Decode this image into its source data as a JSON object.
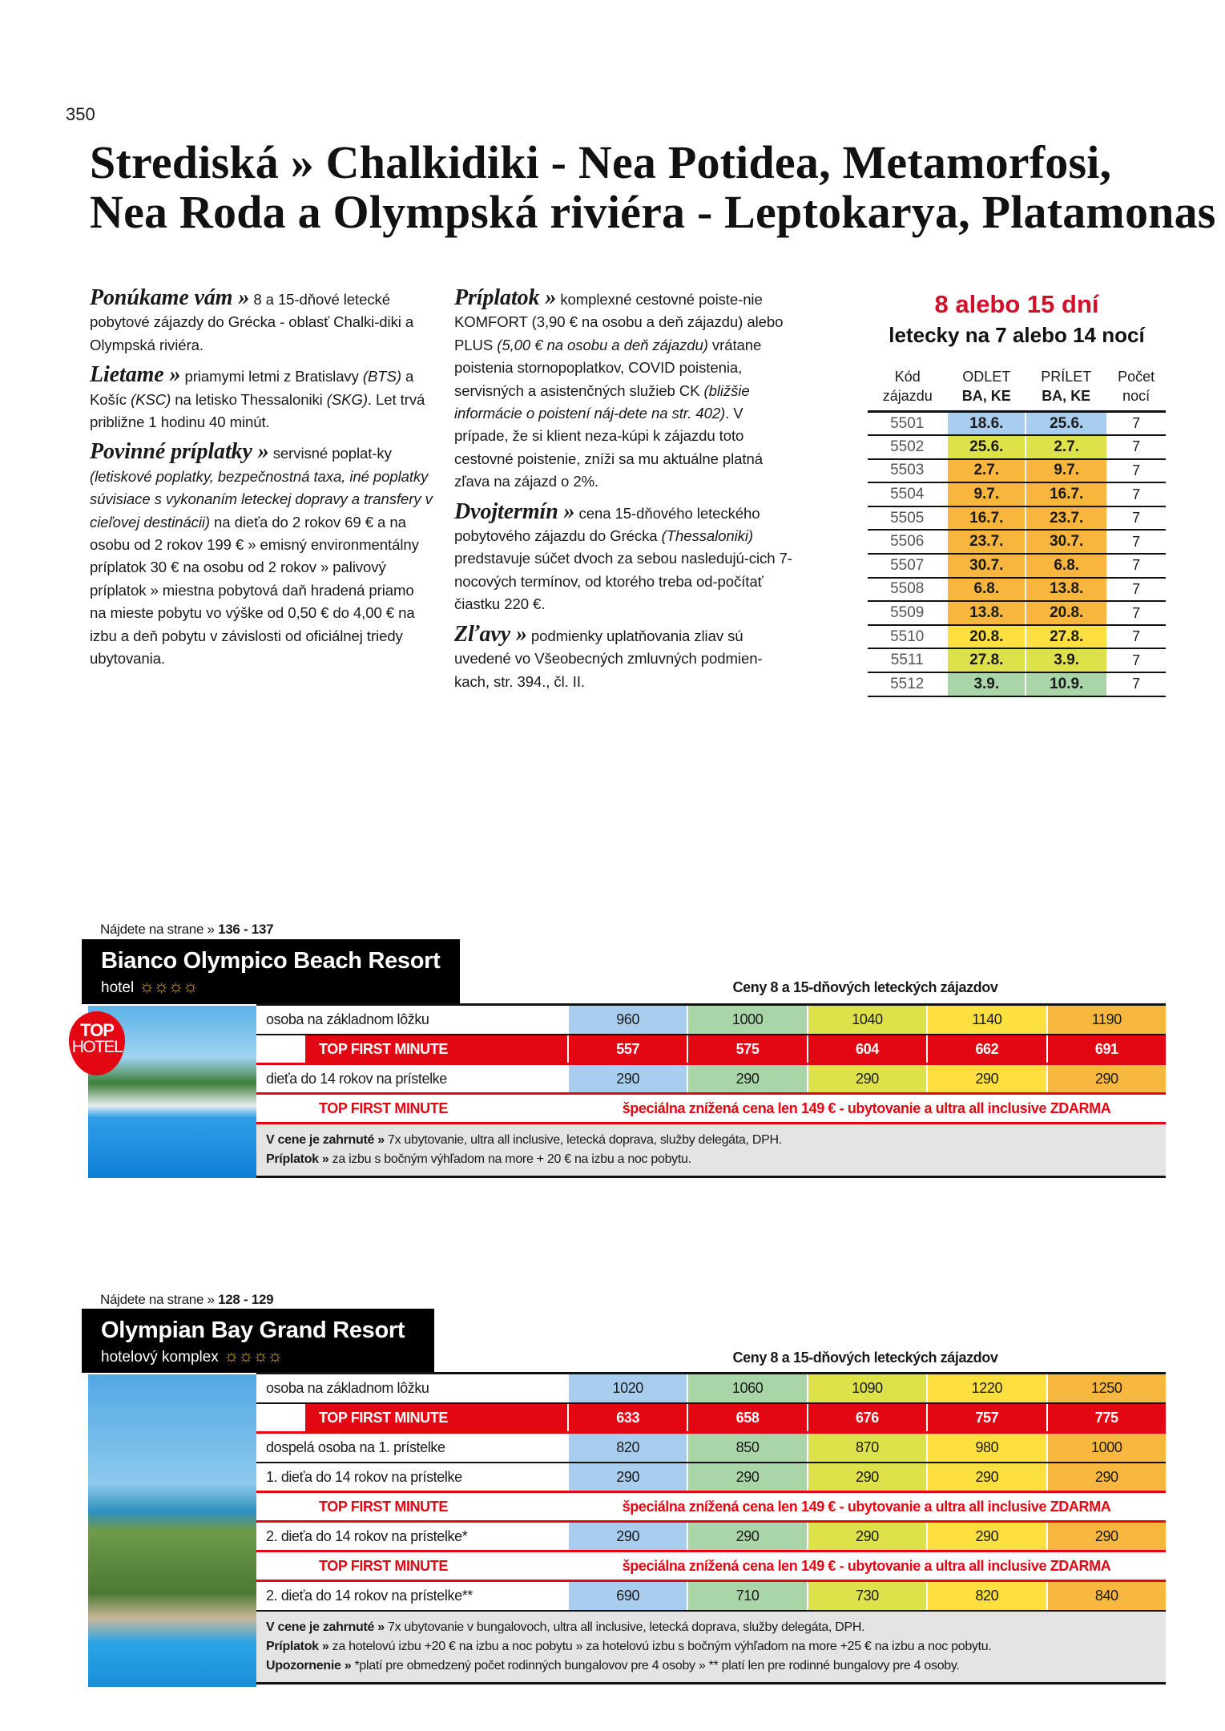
{
  "page_number": "350",
  "title": [
    "Strediská » Chalkidiki - Nea Potidea, Metamorfosi,",
    "Nea Roda a Olympská riviéra - Leptokarya, Platamonas"
  ],
  "columns": [
    [
      {
        "heading": "Ponúkame vám »",
        "segments": [
          {
            "t": " 8 a 15-dňové letecké pobytové zájazdy do Grécka - oblasť Chalki-diki a Olympská riviéra.",
            "i": false
          }
        ]
      },
      {
        "heading": "Lietame »",
        "segments": [
          {
            "t": " priamymi letmi z Bratislavy ",
            "i": false
          },
          {
            "t": "(BTS)",
            "i": true
          },
          {
            "t": " a Košíc ",
            "i": false
          },
          {
            "t": "(KSC)",
            "i": true
          },
          {
            "t": " na letisko Thessaloniki ",
            "i": false
          },
          {
            "t": "(SKG)",
            "i": true
          },
          {
            "t": ". Let trvá približne 1 hodinu 40 minút.",
            "i": false
          }
        ]
      },
      {
        "heading": "Povinné príplatky »",
        "segments": [
          {
            "t": " servisné poplat-ky ",
            "i": false
          },
          {
            "t": "(letiskové poplatky, bezpečnostná taxa, iné poplatky súvisiace s vykonaním leteckej dopravy a transfery v cieľovej destinácii)",
            "i": true
          },
          {
            "t": " na dieťa do 2 rokov 69 € a na osobu od 2 rokov 199 € » emisný environmentálny príplatok 30 € na osobu od 2 rokov » palivový príplatok » miestna pobytová daň hradená priamo na mieste pobytu vo výške od 0,50 € do 4,00 € na izbu a deň pobytu v závislosti od oficiálnej triedy ubytovania.",
            "i": false
          }
        ]
      }
    ],
    [
      {
        "heading": "Príplatok »",
        "segments": [
          {
            "t": " komplexné cestovné poiste-nie KOMFORT (3,90 € na osobu a deň zájazdu) alebo PLUS ",
            "i": false
          },
          {
            "t": "(5,00 € na osobu a deň zájazdu)",
            "i": true
          },
          {
            "t": " vrátane poistenia stornopoplatkov, COVID poistenia, servisných a asistenčných služieb CK ",
            "i": false
          },
          {
            "t": "(bližšie informácie o poistení náj-dete na str. 402)",
            "i": true
          },
          {
            "t": ". V prípade, že si klient neza-kúpi k zájazdu toto cestovné poistenie, zníži sa mu aktuálne platná zľava na zájazd o 2%.",
            "i": false
          }
        ]
      },
      {
        "heading": "Dvojtermín »",
        "segments": [
          {
            "t": " cena 15-dňového leteckého pobytového zájazdu do Grécka ",
            "i": false
          },
          {
            "t": "(Thessaloniki)",
            "i": true
          },
          {
            "t": " predstavuje súčet dvoch za sebou nasledujú-cich 7-nocových termínov, od ktorého treba od-počítať čiastku 220 €.",
            "i": false
          }
        ]
      },
      {
        "heading": "Zľavy »",
        "segments": [
          {
            "t": " podmienky uplatňovania zliav sú uvedené vo Všeobecných zmluvných podmien-kach, str. 394., čl. II.",
            "i": false
          }
        ]
      }
    ]
  ],
  "dates_table": {
    "title": "8 alebo 15 dní",
    "subtitle": "letecky na 7 alebo 14 nocí",
    "headers": [
      [
        "Kód",
        "zájazdu"
      ],
      [
        "ODLET",
        "BA, KE"
      ],
      [
        "PRÍLET",
        "BA, KE"
      ],
      [
        "Počet",
        "nocí"
      ]
    ],
    "rows": [
      {
        "code": "5501",
        "odlet": "18.6.",
        "prilet": "25.6.",
        "noci": "7",
        "color": "#a9cdee"
      },
      {
        "code": "5502",
        "odlet": "25.6.",
        "prilet": "2.7.",
        "noci": "7",
        "color": "#dde24a"
      },
      {
        "code": "5503",
        "odlet": "2.7.",
        "prilet": "9.7.",
        "noci": "7",
        "color": "#f8b63e"
      },
      {
        "code": "5504",
        "odlet": "9.7.",
        "prilet": "16.7.",
        "noci": "7",
        "color": "#f8b63e"
      },
      {
        "code": "5505",
        "odlet": "16.7.",
        "prilet": "23.7.",
        "noci": "7",
        "color": "#f8b63e"
      },
      {
        "code": "5506",
        "odlet": "23.7.",
        "prilet": "30.7.",
        "noci": "7",
        "color": "#f8b63e"
      },
      {
        "code": "5507",
        "odlet": "30.7.",
        "prilet": "6.8.",
        "noci": "7",
        "color": "#f8b63e"
      },
      {
        "code": "5508",
        "odlet": "6.8.",
        "prilet": "13.8.",
        "noci": "7",
        "color": "#f8b63e"
      },
      {
        "code": "5509",
        "odlet": "13.8.",
        "prilet": "20.8.",
        "noci": "7",
        "color": "#f8b63e"
      },
      {
        "code": "5510",
        "odlet": "20.8.",
        "prilet": "27.8.",
        "noci": "7",
        "color": "#fde040"
      },
      {
        "code": "5511",
        "odlet": "27.8.",
        "prilet": "3.9.",
        "noci": "7",
        "color": "#dde24a"
      },
      {
        "code": "5512",
        "odlet": "3.9.",
        "prilet": "10.9.",
        "noci": "7",
        "color": "#a9d5a8"
      }
    ]
  },
  "price_colors": [
    "#a9cdee",
    "#a9d5a8",
    "#dde24a",
    "#fde040",
    "#f8b840"
  ],
  "hotels": [
    {
      "find_label": "Nájdete na strane »",
      "pages": "136 - 137",
      "name": "Bianco Olympico Beach Resort",
      "type": "hotel",
      "stars": 4,
      "badge": [
        "TOP",
        "HOTEL"
      ],
      "prices_title": "Ceny 8 a 15-dňových leteckých zájazdov",
      "rows": [
        {
          "kind": "price",
          "label": "osoba na základnom lôžku",
          "values": [
            "960",
            "1000",
            "1040",
            "1140",
            "1190"
          ]
        },
        {
          "kind": "fm",
          "label": "TOP FIRST MINUTE",
          "values": [
            "557",
            "575",
            "604",
            "662",
            "691"
          ]
        },
        {
          "kind": "price",
          "label": "dieťa do 14 rokov na prístelke",
          "values": [
            "290",
            "290",
            "290",
            "290",
            "290"
          ]
        },
        {
          "kind": "fms",
          "label": "TOP FIRST MINUTE",
          "text": "špeciálna znížená cena len 149 € - ubytovanie a ultra all inclusive ZDARMA"
        }
      ],
      "notes": [
        {
          "label": "V cene je zahrnuté »",
          "text": " 7x ubytovanie, ultra all inclusive, letecká doprava, služby delegáta, DPH."
        },
        {
          "label": "Príplatok »",
          "text": " za izbu s bočným výhľadom na more + 20 € na izbu a noc pobytu."
        }
      ]
    },
    {
      "find_label": "Nájdete na strane »",
      "pages": "128 - 129",
      "name": "Olympian Bay Grand Resort",
      "type": "hotelový komplex",
      "stars": 4,
      "prices_title": "Ceny 8 a 15-dňových leteckých zájazdov",
      "rows": [
        {
          "kind": "price",
          "label": "osoba na základnom lôžku",
          "values": [
            "1020",
            "1060",
            "1090",
            "1220",
            "1250"
          ]
        },
        {
          "kind": "fm",
          "label": "TOP FIRST MINUTE",
          "values": [
            "633",
            "658",
            "676",
            "757",
            "775"
          ]
        },
        {
          "kind": "price",
          "label": "dospelá osoba na 1. prístelke",
          "values": [
            "820",
            "850",
            "870",
            "980",
            "1000"
          ]
        },
        {
          "kind": "price",
          "label": "1. dieťa do 14 rokov na prístelke",
          "values": [
            "290",
            "290",
            "290",
            "290",
            "290"
          ]
        },
        {
          "kind": "fms",
          "label": "TOP FIRST MINUTE",
          "text": "špeciálna znížená cena len 149 € - ubytovanie a ultra all inclusive ZDARMA"
        },
        {
          "kind": "price",
          "label": "2. dieťa do 14 rokov na prístelke*",
          "values": [
            "290",
            "290",
            "290",
            "290",
            "290"
          ]
        },
        {
          "kind": "fms",
          "label": "TOP FIRST MINUTE",
          "text": "špeciálna znížená cena len 149 € - ubytovanie a ultra all inclusive ZDARMA"
        },
        {
          "kind": "price",
          "label": "2. dieťa do 14 rokov na prístelke**",
          "values": [
            "690",
            "710",
            "730",
            "820",
            "840"
          ]
        }
      ],
      "notes": [
        {
          "label": "V cene je zahrnuté »",
          "text": " 7x ubytovanie v bungalovoch, ultra all inclusive, letecká doprava, služby delegáta, DPH."
        },
        {
          "label": "Príplatok »",
          "text": " za hotelovú izbu +20 € na izbu a noc pobytu » za hotelovú izbu s bočným výhľadom na more +25 € na izbu a noc pobytu."
        },
        {
          "label": "Upozornenie »",
          "text": " *platí pre obmedzený počet rodinných bungalovov pre 4 osoby » ** platí len pre rodinné bungalovy pre 4 osoby."
        }
      ]
    }
  ]
}
